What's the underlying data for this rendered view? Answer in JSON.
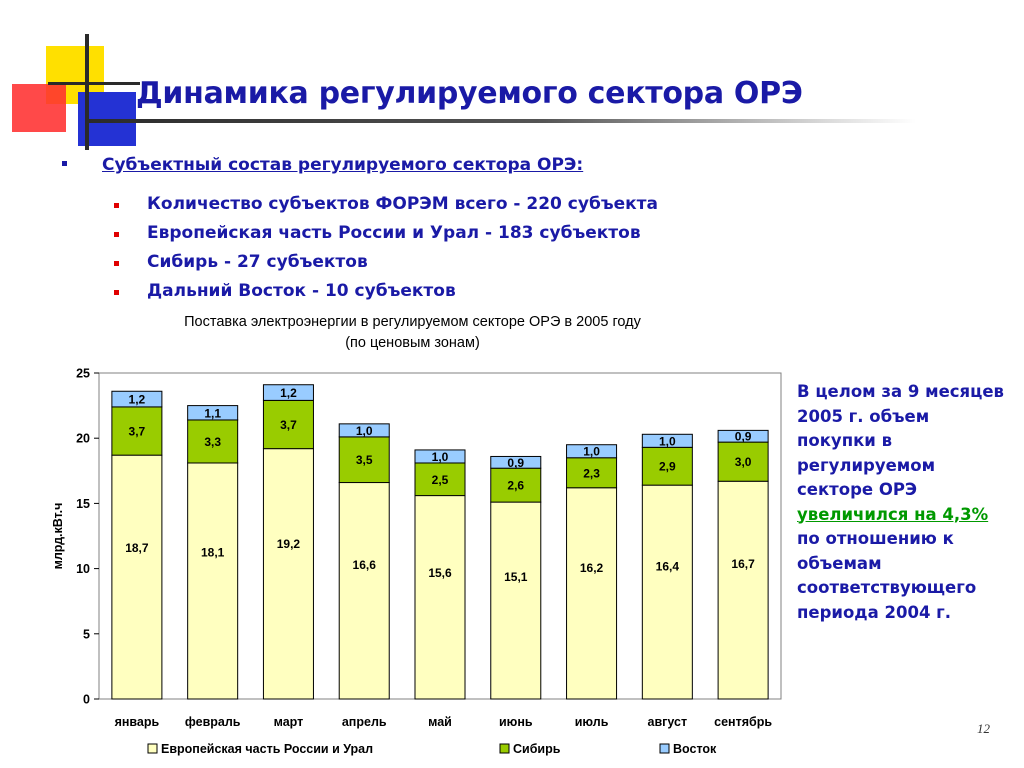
{
  "slide": {
    "title": "Динамика регулируемого сектора ОРЭ",
    "page_number": "12"
  },
  "bullets": {
    "level1": "Субъектный состав регулируемого сектора ОРЭ:",
    "level2": [
      "Количество субъектов ФОРЭМ всего - 220 субъекта",
      "Европейская часть России и Урал - 183 субъектов",
      "Сибирь - 27 субъектов",
      "Дальний Восток - 10 субъектов"
    ]
  },
  "side_note": {
    "before": "В целом за 9 месяцев 2005 г. объем покупки в регулируемом секторе ОРЭ",
    "highlight": "увеличился на 4,3%",
    "after": "по отношению к объемам соответствующего периода 2004 г."
  },
  "colors": {
    "title": "#1a1aa6",
    "europe": "#ffffc0",
    "siberia": "#99cc00",
    "east": "#99ccff",
    "highlight": "#009900"
  },
  "chart_data": {
    "type": "bar",
    "stacked": true,
    "title": "Поставка электроэнергии в регулируемом секторе ОРЭ в 2005 году",
    "subtitle": "(по ценовым зонам)",
    "xlabel": "",
    "ylabel": "млрд.кВт.ч",
    "ylim": [
      0,
      25
    ],
    "yticks": [
      0,
      5,
      10,
      15,
      20,
      25
    ],
    "grid": false,
    "legend": "bottom",
    "categories": [
      "январь",
      "февраль",
      "март",
      "апрель",
      "май",
      "июнь",
      "июль",
      "август",
      "сентябрь"
    ],
    "series": [
      {
        "name": "Европейская часть России и Урал",
        "color": "#ffffc0",
        "values": [
          18.7,
          18.1,
          19.2,
          16.6,
          15.6,
          15.1,
          16.2,
          16.4,
          16.7
        ],
        "labels": [
          "18,7",
          "18,1",
          "19,2",
          "16,6",
          "15,6",
          "15,1",
          "16,2",
          "16,4",
          "16,7"
        ]
      },
      {
        "name": "Сибирь",
        "color": "#99cc00",
        "values": [
          3.7,
          3.3,
          3.7,
          3.5,
          2.5,
          2.6,
          2.3,
          2.9,
          3.0
        ],
        "labels": [
          "3,7",
          "3,3",
          "3,7",
          "3,5",
          "2,5",
          "2,6",
          "2,3",
          "2,9",
          "3,0"
        ]
      },
      {
        "name": "Восток",
        "color": "#99ccff",
        "values": [
          1.2,
          1.1,
          1.2,
          1.0,
          1.0,
          0.9,
          1.0,
          1.0,
          0.9
        ],
        "labels": [
          "1,2",
          "1,1",
          "1,2",
          "1,0",
          "1,0",
          "0,9",
          "1,0",
          "1,0",
          "0,9"
        ]
      }
    ]
  }
}
